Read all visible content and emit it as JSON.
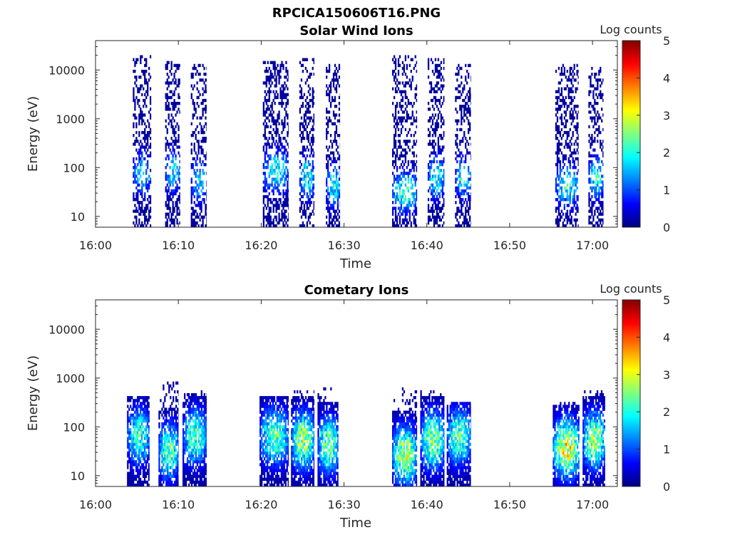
{
  "figure": {
    "suptitle": "RPCICA150606T16.PNG"
  },
  "colormap": {
    "name": "jet",
    "stops": [
      "#000080",
      "#0000ff",
      "#0080ff",
      "#00ffff",
      "#80ff80",
      "#ffff00",
      "#ff8000",
      "#ff0000",
      "#800000"
    ]
  },
  "chart_data": [
    {
      "type": "heatmap",
      "title": "Solar Wind Ions",
      "xlabel": "Time",
      "ylabel": "Energy (eV)",
      "xlim": [
        "16:00",
        "17:03"
      ],
      "ylim": [
        6,
        40000
      ],
      "yscale": "log",
      "xticks": [
        "16:00",
        "16:10",
        "16:20",
        "16:30",
        "16:40",
        "16:50",
        "17:00"
      ],
      "yticks": [
        10,
        100,
        1000,
        10000
      ],
      "ytick_labels": [
        "10",
        "100",
        "1000",
        "10000"
      ],
      "colorbar": {
        "label": "Log counts",
        "range": [
          0,
          5
        ],
        "ticks": [
          "0",
          "1",
          "2",
          "3",
          "4",
          "5"
        ]
      },
      "grid": false,
      "bursts": [
        {
          "start": "16:04.5",
          "end": "16:06.7",
          "peak_log_counts": 2.0,
          "energy_peak_eV": 70,
          "max_energy_eV": 20000
        },
        {
          "start": "16:08.4",
          "end": "16:10.2",
          "peak_log_counts": 2.0,
          "energy_peak_eV": 80,
          "max_energy_eV": 15000
        },
        {
          "start": "16:11.5",
          "end": "16:13.4",
          "peak_log_counts": 1.9,
          "energy_peak_eV": 50,
          "max_energy_eV": 13000
        },
        {
          "start": "16:20.2",
          "end": "16:23.3",
          "peak_log_counts": 2.2,
          "energy_peak_eV": 80,
          "max_energy_eV": 14000
        },
        {
          "start": "16:24.6",
          "end": "16:26.4",
          "peak_log_counts": 2.3,
          "energy_peak_eV": 60,
          "max_energy_eV": 17000
        },
        {
          "start": "16:27.8",
          "end": "16:29.5",
          "peak_log_counts": 2.2,
          "energy_peak_eV": 40,
          "max_energy_eV": 12000
        },
        {
          "start": "16:35.8",
          "end": "16:38.8",
          "peak_log_counts": 2.5,
          "energy_peak_eV": 30,
          "max_energy_eV": 20000
        },
        {
          "start": "16:40.1",
          "end": "16:42.1",
          "peak_log_counts": 2.3,
          "energy_peak_eV": 60,
          "max_energy_eV": 17000
        },
        {
          "start": "16:43.4",
          "end": "16:45.3",
          "peak_log_counts": 2.2,
          "energy_peak_eV": 60,
          "max_energy_eV": 13000
        },
        {
          "start": "16:55.5",
          "end": "16:58.3",
          "peak_log_counts": 2.3,
          "energy_peak_eV": 40,
          "max_energy_eV": 13000
        },
        {
          "start": "16:59.5",
          "end": "17:01.3",
          "peak_log_counts": 2.4,
          "energy_peak_eV": 60,
          "max_energy_eV": 11000
        }
      ]
    },
    {
      "type": "heatmap",
      "title": "Cometary Ions",
      "xlabel": "Time",
      "ylabel": "Energy (eV)",
      "xlim": [
        "16:00",
        "17:03"
      ],
      "ylim": [
        6,
        40000
      ],
      "yscale": "log",
      "xticks": [
        "16:00",
        "16:10",
        "16:20",
        "16:30",
        "16:40",
        "16:50",
        "17:00"
      ],
      "yticks": [
        10,
        100,
        1000,
        10000
      ],
      "ytick_labels": [
        "10",
        "100",
        "1000",
        "10000"
      ],
      "colorbar": {
        "label": "Log counts",
        "range": [
          0,
          5
        ],
        "ticks": [
          "0",
          "1",
          "2",
          "3",
          "4",
          "5"
        ]
      },
      "grid": false,
      "bursts": [
        {
          "start": "16:03.8",
          "end": "16:06.5",
          "peak_log_counts": 2.4,
          "energy_peak_eV": 60,
          "max_energy_eV": 400
        },
        {
          "start": "16:07.6",
          "end": "16:10.0",
          "peak_log_counts": 2.6,
          "energy_peak_eV": 30,
          "max_energy_eV": 800
        },
        {
          "start": "16:10.5",
          "end": "16:13.4",
          "peak_log_counts": 2.5,
          "energy_peak_eV": 60,
          "max_energy_eV": 500
        },
        {
          "start": "16:19.8",
          "end": "16:23.3",
          "peak_log_counts": 2.6,
          "energy_peak_eV": 60,
          "max_energy_eV": 400
        },
        {
          "start": "16:23.6",
          "end": "16:26.4",
          "peak_log_counts": 3.0,
          "energy_peak_eV": 50,
          "max_energy_eV": 500
        },
        {
          "start": "16:26.8",
          "end": "16:29.3",
          "peak_log_counts": 2.8,
          "energy_peak_eV": 40,
          "max_energy_eV": 600
        },
        {
          "start": "16:35.8",
          "end": "16:38.8",
          "peak_log_counts": 3.1,
          "energy_peak_eV": 25,
          "max_energy_eV": 600
        },
        {
          "start": "16:39.2",
          "end": "16:42.1",
          "peak_log_counts": 2.9,
          "energy_peak_eV": 50,
          "max_energy_eV": 500
        },
        {
          "start": "16:42.4",
          "end": "16:45.3",
          "peak_log_counts": 2.6,
          "energy_peak_eV": 60,
          "max_energy_eV": 300
        },
        {
          "start": "16:55.2",
          "end": "16:58.4",
          "peak_log_counts": 3.5,
          "energy_peak_eV": 35,
          "max_energy_eV": 300
        },
        {
          "start": "16:58.8",
          "end": "17:01.5",
          "peak_log_counts": 3.0,
          "energy_peak_eV": 50,
          "max_energy_eV": 500
        }
      ]
    }
  ]
}
